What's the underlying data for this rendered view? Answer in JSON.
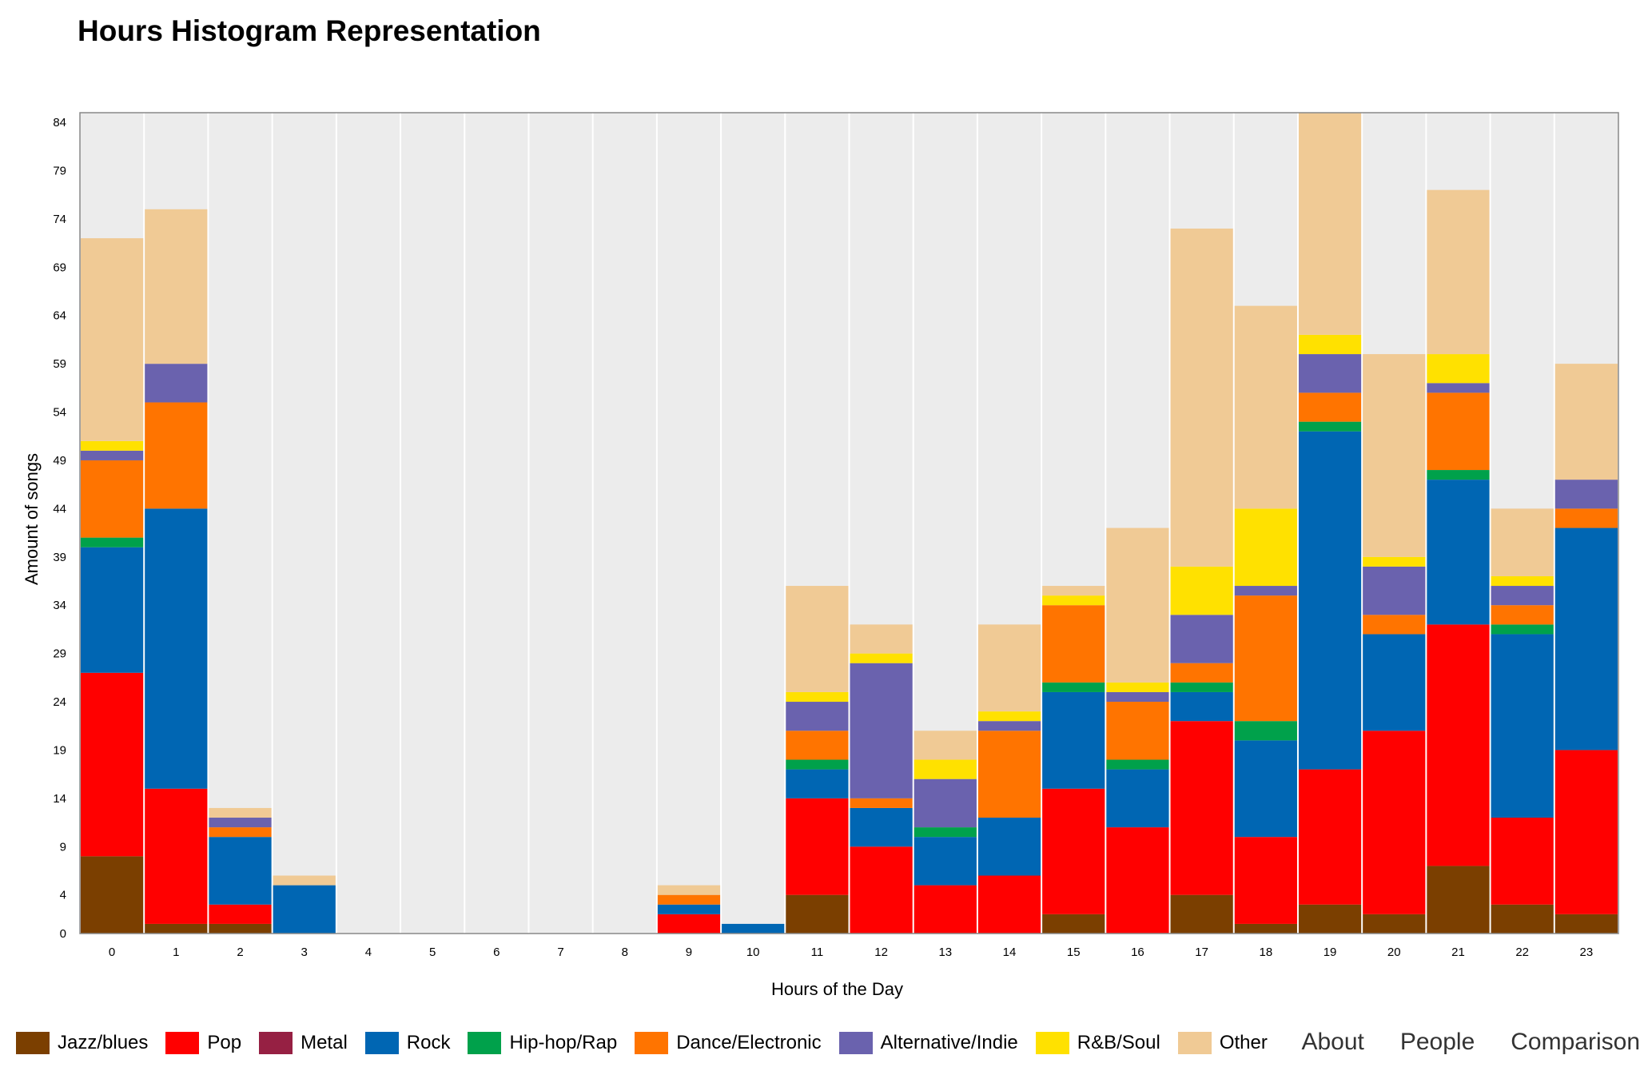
{
  "page": {
    "title": "Hours Histogram Representation"
  },
  "nav": {
    "links": [
      "About",
      "People",
      "Comparison"
    ]
  },
  "colors": {
    "plot_background": "#ececec",
    "grid": "#ffffff",
    "Jazz/blues": "#7b3f00",
    "Pop": "#ff0000",
    "Metal": "#962043",
    "Rock": "#0066b3",
    "Hip-hop/Rap": "#00a14b",
    "Dance/Electronic": "#ff7400",
    "Alternative/Indie": "#6a62ae",
    "R&B/Soul": "#ffe100",
    "Other": "#f0ca95"
  },
  "chart_data": {
    "type": "bar",
    "stacked": true,
    "title": "Hours Histogram Representation",
    "xlabel": "Hours of the Day",
    "ylabel": "Amount of songs",
    "ylim": [
      0,
      85
    ],
    "yticks": [
      0,
      4,
      9,
      14,
      19,
      24,
      29,
      34,
      39,
      44,
      49,
      54,
      59,
      64,
      69,
      74,
      79,
      84
    ],
    "grid": true,
    "legend_position": "bottom",
    "categories": [
      "0",
      "1",
      "2",
      "3",
      "4",
      "5",
      "6",
      "7",
      "8",
      "9",
      "10",
      "11",
      "12",
      "13",
      "14",
      "15",
      "16",
      "17",
      "18",
      "19",
      "20",
      "21",
      "22",
      "23"
    ],
    "series": [
      {
        "name": "Jazz/blues",
        "color": "#7b3f00",
        "values": [
          8,
          1,
          1,
          0,
          0,
          0,
          0,
          0,
          0,
          0,
          0,
          4,
          0,
          0,
          0,
          2,
          0,
          4,
          1,
          3,
          2,
          7,
          3,
          2
        ]
      },
      {
        "name": "Pop",
        "color": "#ff0000",
        "values": [
          19,
          14,
          2,
          0,
          0,
          0,
          0,
          0,
          0,
          2,
          0,
          10,
          9,
          5,
          6,
          13,
          11,
          18,
          9,
          14,
          19,
          25,
          9,
          17
        ]
      },
      {
        "name": "Metal",
        "color": "#962043",
        "values": [
          0,
          0,
          0,
          0,
          0,
          0,
          0,
          0,
          0,
          0,
          0,
          0,
          0,
          0,
          0,
          0,
          0,
          0,
          0,
          0,
          0,
          0,
          0,
          0
        ]
      },
      {
        "name": "Rock",
        "color": "#0066b3",
        "values": [
          13,
          29,
          7,
          5,
          0,
          0,
          0,
          0,
          0,
          1,
          1,
          3,
          4,
          5,
          6,
          10,
          6,
          3,
          10,
          35,
          10,
          15,
          19,
          23
        ]
      },
      {
        "name": "Hip-hop/Rap",
        "color": "#00a14b",
        "values": [
          1,
          0,
          0,
          0,
          0,
          0,
          0,
          0,
          0,
          0,
          0,
          1,
          0,
          1,
          0,
          1,
          1,
          1,
          2,
          1,
          0,
          1,
          1,
          0
        ]
      },
      {
        "name": "Dance/Electronic",
        "color": "#ff7400",
        "values": [
          8,
          11,
          1,
          0,
          0,
          0,
          0,
          0,
          0,
          1,
          0,
          3,
          1,
          0,
          9,
          8,
          6,
          2,
          13,
          3,
          2,
          8,
          2,
          2
        ]
      },
      {
        "name": "Alternative/Indie",
        "color": "#6a62ae",
        "values": [
          1,
          4,
          1,
          0,
          0,
          0,
          0,
          0,
          0,
          0,
          0,
          3,
          14,
          5,
          1,
          0,
          1,
          5,
          1,
          4,
          5,
          1,
          2,
          3
        ]
      },
      {
        "name": "R&B/Soul",
        "color": "#ffe100",
        "values": [
          1,
          0,
          0,
          0,
          0,
          0,
          0,
          0,
          0,
          0,
          0,
          1,
          1,
          2,
          1,
          1,
          1,
          5,
          8,
          2,
          1,
          3,
          1,
          0
        ]
      },
      {
        "name": "Other",
        "color": "#f0ca95",
        "values": [
          21,
          16,
          1,
          1,
          0,
          0,
          0,
          0,
          0,
          1,
          0,
          11,
          3,
          3,
          9,
          1,
          16,
          35,
          21,
          23,
          21,
          17,
          7,
          12
        ]
      }
    ]
  }
}
